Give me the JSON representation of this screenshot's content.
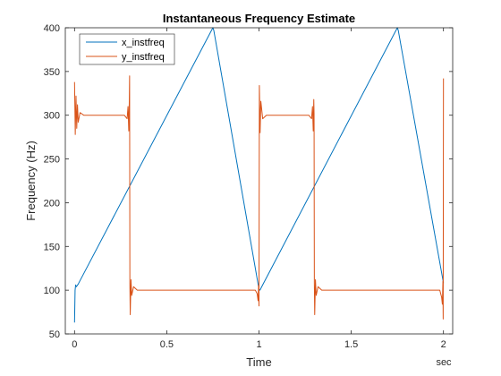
{
  "chart_data": {
    "type": "line",
    "title": "Instantaneous Frequency Estimate",
    "xlabel": "Time",
    "xunit_label": "sec",
    "ylabel": "Frequency (Hz)",
    "xlim": [
      -0.05,
      2.05
    ],
    "ylim": [
      50,
      400
    ],
    "xticks": [
      0,
      0.5,
      1,
      1.5,
      2
    ],
    "xtick_labels": [
      "0",
      "0.5",
      "1",
      "1.5",
      "2"
    ],
    "yticks": [
      50,
      100,
      150,
      200,
      250,
      300,
      350,
      400
    ],
    "ytick_labels": [
      "50",
      "100",
      "150",
      "200",
      "250",
      "300",
      "350",
      "400"
    ],
    "grid": false,
    "legend_position": "top-left",
    "series": [
      {
        "name": "x_instfreq",
        "color": "#0072BD",
        "x": [
          0.0,
          0.003,
          0.006,
          0.01,
          0.02,
          0.75,
          0.755,
          1.0,
          1.005,
          1.75,
          1.755,
          1.995,
          2.0
        ],
        "y": [
          63,
          100,
          106,
          104,
          107,
          400,
          397,
          101,
          100,
          400,
          397,
          114,
          108
        ]
      },
      {
        "name": "y_instfreq",
        "color": "#D95319",
        "x": [
          0.0,
          0.004,
          0.008,
          0.012,
          0.016,
          0.02,
          0.03,
          0.05,
          0.27,
          0.285,
          0.29,
          0.294,
          0.297,
          0.2985,
          0.3,
          0.302,
          0.306,
          0.31,
          0.32,
          0.34,
          0.98,
          0.99,
          0.995,
          0.998,
          1.0,
          1.002,
          1.006,
          1.01,
          1.02,
          1.04,
          1.27,
          1.285,
          1.29,
          1.294,
          1.297,
          1.2985,
          1.3,
          1.302,
          1.306,
          1.31,
          1.32,
          1.34,
          1.98,
          1.99,
          1.994,
          1.997,
          1.9985,
          2.0
        ],
        "y": [
          338,
          278,
          322,
          285,
          312,
          292,
          303,
          300,
          300,
          296,
          310,
          282,
          318,
          345,
          108,
          72,
          112,
          94,
          104,
          100,
          100,
          96,
          88,
          106,
          82,
          334,
          280,
          316,
          296,
          300,
          300,
          296,
          310,
          282,
          318,
          302,
          108,
          72,
          112,
          94,
          104,
          100,
          100,
          92,
          84,
          110,
          67,
          342
        ]
      }
    ]
  }
}
